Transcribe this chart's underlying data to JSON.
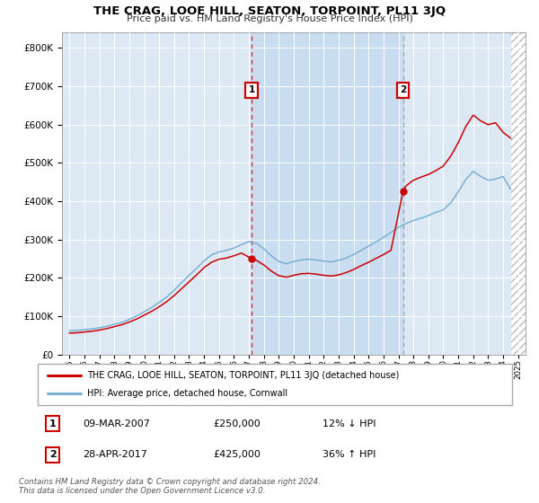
{
  "title": "THE CRAG, LOOE HILL, SEATON, TORPOINT, PL11 3JQ",
  "subtitle": "Price paid vs. HM Land Registry's House Price Index (HPI)",
  "bg_color": "#dce9f5",
  "highlight_color": "#c8ddf0",
  "red_color": "#cc0000",
  "blue_color": "#7ab0d4",
  "legend_label_red": "THE CRAG, LOOE HILL, SEATON, TORPOINT, PL11 3JQ (detached house)",
  "legend_label_blue": "HPI: Average price, detached house, Cornwall",
  "transaction1_date": "09-MAR-2007",
  "transaction1_price": "£250,000",
  "transaction1_note": "12% ↓ HPI",
  "transaction1_year": 2007.2,
  "transaction2_date": "28-APR-2017",
  "transaction2_price": "£425,000",
  "transaction2_note": "36% ↑ HPI",
  "transaction2_year": 2017.3,
  "footer_line1": "Contains HM Land Registry data © Crown copyright and database right 2024.",
  "footer_line2": "This data is licensed under the Open Government Licence v3.0.",
  "ylim_max": 840000,
  "yticks": [
    0,
    100000,
    200000,
    300000,
    400000,
    500000,
    600000,
    700000,
    800000
  ],
  "xmin": 1994.5,
  "xmax": 2025.5,
  "hpi_x": [
    1995,
    1995.5,
    1996,
    1996.5,
    1997,
    1997.5,
    1998,
    1998.5,
    1999,
    1999.5,
    2000,
    2000.5,
    2001,
    2001.5,
    2002,
    2002.5,
    2003,
    2003.5,
    2004,
    2004.5,
    2005,
    2005.5,
    2006,
    2006.5,
    2007,
    2007.5,
    2008,
    2008.5,
    2009,
    2009.5,
    2010,
    2010.5,
    2011,
    2011.5,
    2012,
    2012.5,
    2013,
    2013.5,
    2014,
    2014.5,
    2015,
    2015.5,
    2016,
    2016.5,
    2017,
    2017.5,
    2018,
    2018.5,
    2019,
    2019.5,
    2020,
    2020.5,
    2021,
    2021.5,
    2022,
    2022.5,
    2023,
    2023.5,
    2024,
    2024.5
  ],
  "hpi_y": [
    62000,
    63000,
    65000,
    67000,
    70000,
    74000,
    79000,
    84000,
    92000,
    101000,
    112000,
    123000,
    136000,
    150000,
    168000,
    188000,
    207000,
    225000,
    245000,
    260000,
    268000,
    272000,
    278000,
    287000,
    295000,
    290000,
    276000,
    258000,
    243000,
    237000,
    243000,
    247000,
    249000,
    247000,
    244000,
    242000,
    246000,
    252000,
    261000,
    272000,
    283000,
    294000,
    306000,
    319000,
    332000,
    342000,
    350000,
    356000,
    363000,
    371000,
    378000,
    396000,
    425000,
    457000,
    478000,
    465000,
    455000,
    458000,
    465000,
    432000
  ],
  "prop_x": [
    1995,
    1995.5,
    1996,
    1996.5,
    1997,
    1997.5,
    1998,
    1998.5,
    1999,
    1999.5,
    2000,
    2000.5,
    2001,
    2001.5,
    2002,
    2002.5,
    2003,
    2003.5,
    2004,
    2004.5,
    2005,
    2005.5,
    2006,
    2006.5,
    2007.2,
    2007.5,
    2008,
    2008.5,
    2009,
    2009.5,
    2010,
    2010.5,
    2011,
    2011.5,
    2012,
    2012.5,
    2013,
    2013.5,
    2014,
    2014.5,
    2015,
    2015.5,
    2016,
    2016.5,
    2017.3,
    2017.5,
    2018,
    2018.5,
    2019,
    2019.5,
    2020,
    2020.5,
    2021,
    2021.5,
    2022,
    2022.5,
    2023,
    2023.5,
    2024,
    2024.5
  ],
  "prop_y": [
    56000,
    57000,
    59000,
    61000,
    64000,
    68000,
    73000,
    78000,
    85000,
    93000,
    103000,
    113000,
    125000,
    138000,
    154000,
    172000,
    190000,
    208000,
    227000,
    241000,
    249000,
    252000,
    258000,
    265000,
    250000,
    246000,
    234000,
    218000,
    206000,
    202000,
    207000,
    211000,
    212000,
    210000,
    207000,
    205000,
    208000,
    214000,
    222000,
    232000,
    241000,
    251000,
    261000,
    272000,
    425000,
    440000,
    455000,
    463000,
    470000,
    480000,
    492000,
    518000,
    553000,
    595000,
    625000,
    610000,
    600000,
    605000,
    580000,
    565000
  ]
}
